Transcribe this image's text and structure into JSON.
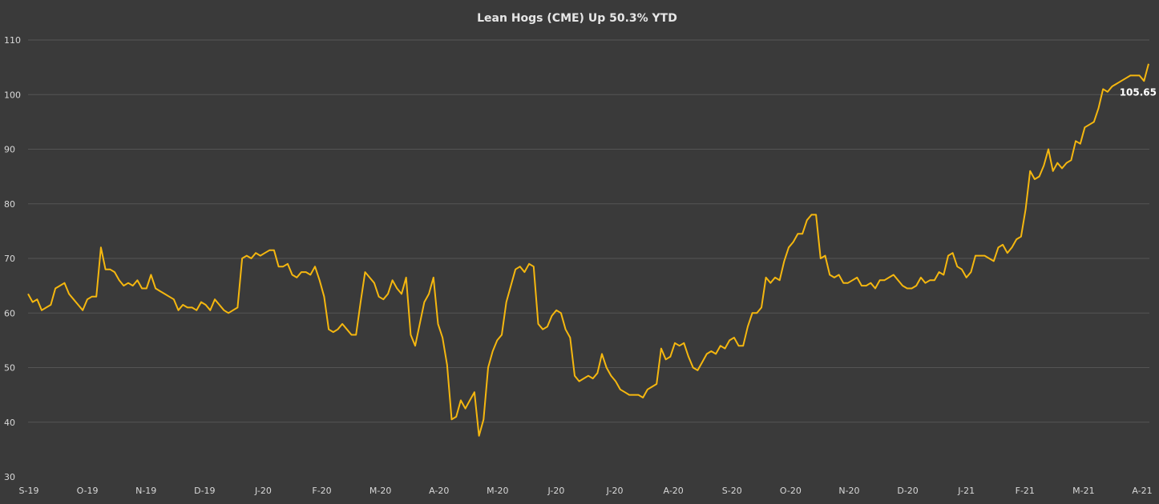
{
  "chart_data": {
    "type": "line",
    "title": "Lean Hogs (CME) Up 50.3% YTD",
    "xlabel": "",
    "ylabel": "",
    "ylim": [
      30,
      110
    ],
    "yticks": [
      30,
      40,
      50,
      60,
      70,
      80,
      90,
      100,
      110
    ],
    "xticks": [
      "S-19",
      "O-19",
      "N-19",
      "D-19",
      "J-20",
      "F-20",
      "M-20",
      "A-20",
      "M-20",
      "J-20",
      "J-20",
      "A-20",
      "S-20",
      "O-20",
      "N-20",
      "D-20",
      "J-21",
      "F-21",
      "M-21",
      "A-21"
    ],
    "grid": true,
    "legend": "none",
    "colors": {
      "background": "#3a3a3a",
      "line": "#f5b70f",
      "grid": "#555555",
      "text": "#d8d8d8"
    },
    "last_value_label": "105.65",
    "series": [
      {
        "values": [
          63.5,
          62.0,
          62.5,
          60.5,
          61.0,
          61.5,
          64.5,
          65.0,
          65.5,
          63.5,
          62.5,
          61.5,
          60.5,
          62.5,
          63.0,
          63.0,
          72.0,
          68.0,
          68.0,
          67.5,
          66.0,
          65.0,
          65.5,
          65.0,
          66.0,
          64.5,
          64.5,
          67.0,
          64.5,
          64.0,
          63.5,
          63.0,
          62.5,
          60.5,
          61.5,
          61.0,
          61.0,
          60.5,
          62.0,
          61.5,
          60.5,
          62.5,
          61.5,
          60.5,
          60.0,
          60.5,
          61.0,
          70.0,
          70.5,
          70.0,
          71.0,
          70.5,
          71.0,
          71.5,
          71.5,
          68.5,
          68.5,
          69.0,
          67.0,
          66.5,
          67.5,
          67.5,
          67.0,
          68.5,
          66.0,
          63.0,
          57.0,
          56.5,
          57.0,
          58.0,
          57.0,
          56.0,
          56.0,
          62.0,
          67.5,
          66.5,
          65.5,
          63.0,
          62.5,
          63.5,
          66.0,
          64.5,
          63.5,
          66.5,
          56.0,
          54.0,
          58.0,
          62.0,
          63.5,
          66.5,
          58.0,
          55.5,
          50.5,
          40.5,
          41.0,
          44.0,
          42.5,
          44.0,
          45.5,
          37.5,
          40.5,
          50.0,
          53.0,
          55.0,
          56.0,
          62.0,
          65.0,
          68.0,
          68.5,
          67.5,
          69.0,
          68.5,
          58.0,
          57.0,
          57.5,
          59.5,
          60.5,
          60.0,
          57.0,
          55.5,
          48.5,
          47.5,
          48.0,
          48.5,
          48.0,
          49.0,
          52.5,
          50.0,
          48.5,
          47.5,
          46.0,
          45.5,
          45.0,
          45.0,
          45.0,
          44.5,
          46.0,
          46.5,
          47.0,
          53.5,
          51.5,
          52.0,
          54.5,
          54.0,
          54.5,
          52.0,
          50.0,
          49.5,
          51.0,
          52.5,
          53.0,
          52.5,
          54.0,
          53.5,
          55.0,
          55.5,
          54.0,
          54.0,
          57.5,
          60.0,
          60.0,
          61.0,
          66.5,
          65.5,
          66.5,
          66.0,
          69.5,
          72.0,
          73.0,
          74.5,
          74.5,
          77.0,
          78.0,
          78.0,
          70.0,
          70.5,
          67.0,
          66.5,
          67.0,
          65.5,
          65.5,
          66.0,
          66.5,
          65.0,
          65.0,
          65.5,
          64.5,
          66.0,
          66.0,
          66.5,
          67.0,
          66.0,
          65.0,
          64.5,
          64.5,
          65.0,
          66.5,
          65.5,
          66.0,
          66.0,
          67.5,
          67.0,
          70.5,
          71.0,
          68.5,
          68.0,
          66.5,
          67.5,
          70.5,
          70.5,
          70.5,
          70.0,
          69.5,
          72.0,
          72.5,
          71.0,
          72.0,
          73.5,
          74.0,
          79.0,
          86.0,
          84.5,
          85.0,
          87.0,
          90.0,
          86.0,
          87.5,
          86.5,
          87.5,
          88.0,
          91.5,
          91.0,
          94.0,
          94.5,
          95.0,
          97.5,
          101.0,
          100.5,
          101.5,
          102.0,
          102.5,
          103.0,
          103.5,
          103.5,
          103.5,
          102.5,
          105.65
        ]
      }
    ]
  }
}
